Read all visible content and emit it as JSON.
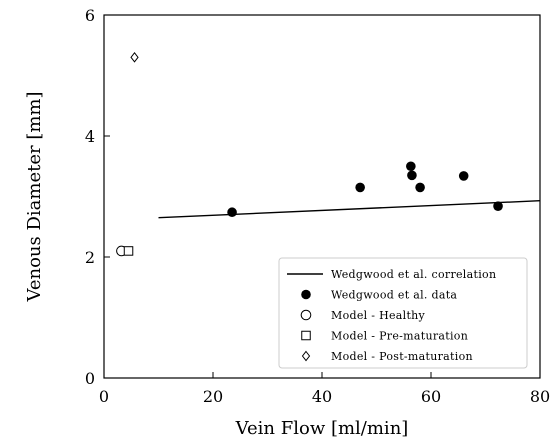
{
  "chart_data": {
    "type": "scatter",
    "xlabel": "Vein Flow [ml/min]",
    "ylabel": "Venous Diameter [mm]",
    "xlim": [
      0,
      80
    ],
    "ylim": [
      0,
      6
    ],
    "xticks": [
      0,
      20,
      40,
      60,
      80
    ],
    "yticks": [
      0,
      2,
      4,
      6
    ],
    "grid": false,
    "legend_position": "bottom-right",
    "series": [
      {
        "name": "Wedgwood et al. correlation",
        "kind": "line",
        "color": "#000000",
        "x": [
          10,
          80
        ],
        "y": [
          2.65,
          2.93
        ]
      },
      {
        "name": "Wedgwood et al. data",
        "kind": "filled-circle",
        "color": "#000000",
        "x": [
          23.5,
          47,
          56.3,
          56.5,
          58,
          66,
          72.3
        ],
        "y": [
          2.74,
          3.15,
          3.5,
          3.35,
          3.15,
          3.34,
          2.84
        ]
      },
      {
        "name": "Model - Healthy",
        "kind": "open-circle",
        "color": "#000000",
        "x": [
          3.2
        ],
        "y": [
          2.1
        ]
      },
      {
        "name": "Model - Pre-maturation",
        "kind": "open-square",
        "color": "#000000",
        "x": [
          4.5
        ],
        "y": [
          2.1
        ]
      },
      {
        "name": "Model - Post-maturation",
        "kind": "open-diamond",
        "color": "#000000",
        "x": [
          5.6
        ],
        "y": [
          5.3
        ]
      }
    ]
  }
}
